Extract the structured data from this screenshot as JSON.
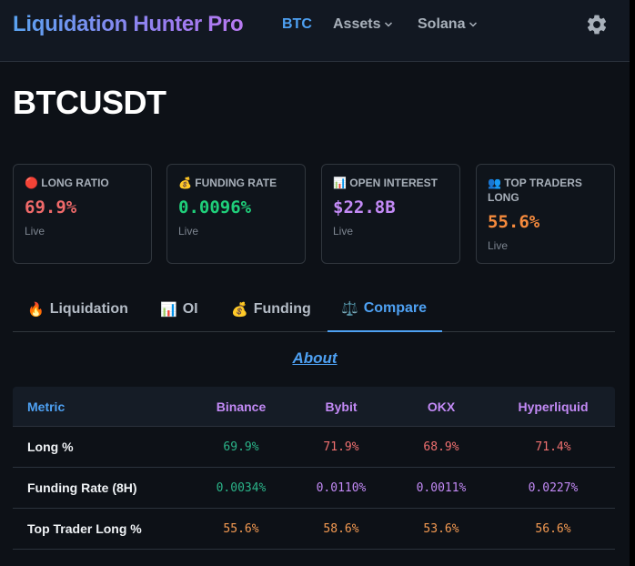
{
  "colors": {
    "accent": "#4ea1f3",
    "long_red": "#f06a6a",
    "green": "#1fcf7a",
    "purple": "#c38af6",
    "orange": "#f78b3d",
    "green_cell": "#2bb489",
    "red_cell": "#f07070",
    "purple_cell": "#c38af6",
    "orange_cell": "#f49a52"
  },
  "nav": {
    "brand": "Liquidation Hunter Pro",
    "items": [
      {
        "label": "BTC",
        "icon": null
      },
      {
        "label": "Assets",
        "icon": "chevron-down-icon"
      },
      {
        "label": "Solana",
        "icon": "chevron-down-icon"
      }
    ],
    "settings_icon": "gear-icon"
  },
  "symbol": "BTCUSDT",
  "cards": [
    {
      "icon": "🔴",
      "label": "LONG RATIO",
      "value": "69.9%",
      "sub": "Live",
      "color": "#f06a6a"
    },
    {
      "icon": "💰",
      "label": "FUNDING RATE",
      "value": "0.0096%",
      "sub": "Live",
      "color": "#1fcf7a"
    },
    {
      "icon": "📊",
      "label": "OPEN INTEREST",
      "value": "$22.8B",
      "sub": "Live",
      "color": "#c38af6"
    },
    {
      "icon": "👥",
      "label": "TOP TRADERS LONG",
      "value": "55.6%",
      "sub": "Live",
      "color": "#f78b3d"
    }
  ],
  "tabs": [
    {
      "icon": "🔥",
      "label": "Liquidation"
    },
    {
      "icon": "📊",
      "label": "OI"
    },
    {
      "icon": "💰",
      "label": "Funding"
    },
    {
      "icon": "⚖️",
      "label": "Compare",
      "active": true
    }
  ],
  "about_link": "About",
  "table": {
    "headers": [
      "Metric",
      "Binance",
      "Bybit",
      "OKX",
      "Hyperliquid"
    ],
    "rows": [
      {
        "metric": "Long %",
        "values": [
          "69.9%",
          "71.9%",
          "68.9%",
          "71.4%"
        ]
      },
      {
        "metric": "Funding Rate (8H)",
        "values": [
          "0.0034%",
          "0.0110%",
          "0.0011%",
          "0.0227%"
        ]
      },
      {
        "metric": "Top Trader Long %",
        "values": [
          "55.6%",
          "58.6%",
          "53.6%",
          "56.6%"
        ]
      }
    ]
  }
}
